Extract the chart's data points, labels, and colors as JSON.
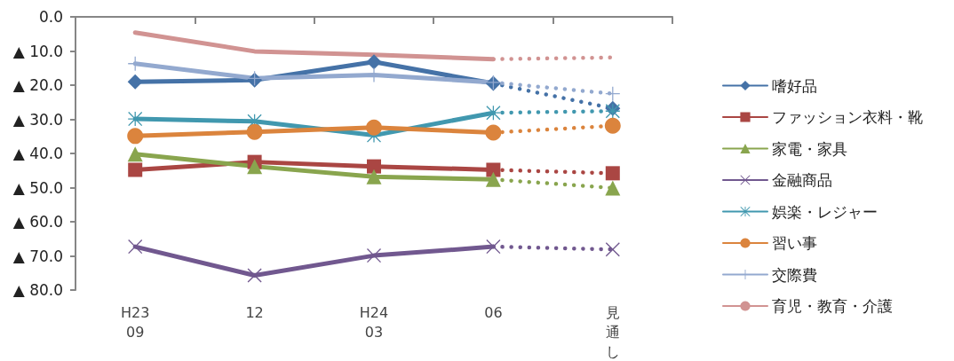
{
  "chart_data": {
    "type": "line",
    "categories": [
      "H23\n09",
      "12",
      "H24\n03",
      "06",
      "見通し"
    ],
    "ylim": [
      -80,
      0
    ],
    "yticks": [
      {
        "value": -80,
        "label": "▲ 80.0"
      },
      {
        "value": -70,
        "label": "▲ 70.0"
      },
      {
        "value": -60,
        "label": "▲ 60.0"
      },
      {
        "value": -50,
        "label": "▲ 50.0"
      },
      {
        "value": -40,
        "label": "▲ 40.0"
      },
      {
        "value": -30,
        "label": "▲ 30.0"
      },
      {
        "value": -20,
        "label": "▲ 20.0"
      },
      {
        "value": -10,
        "label": "▲ 10.0"
      },
      {
        "value": 0,
        "label": "0.0"
      }
    ],
    "grid": false,
    "legend": "right",
    "series": [
      {
        "name": "嗜好品",
        "color": "#4572a7",
        "marker": "diamond",
        "line_style": "solid",
        "values": [
          -19.0,
          -18.5,
          -13.2,
          -19.5,
          null
        ]
      },
      {
        "name": "ファッション衣料・靴",
        "color": "#aa4643",
        "marker": "square",
        "line_style": "solid",
        "values": [
          -44.8,
          -42.5,
          -43.8,
          -44.8,
          null
        ]
      },
      {
        "name": "家電・家具",
        "color": "#89a54e",
        "marker": "triangle",
        "line_style": "solid",
        "values": [
          -40.2,
          -43.8,
          -46.8,
          -47.6,
          null
        ]
      },
      {
        "name": "金融商品",
        "color": "#71588f",
        "marker": "cross",
        "line_style": "solid",
        "values": [
          -67.3,
          -75.7,
          -69.9,
          -67.3,
          null
        ]
      },
      {
        "name": "娯楽・レジャー",
        "color": "#4198af",
        "marker": "star",
        "line_style": "solid",
        "values": [
          -29.9,
          -30.6,
          -34.7,
          -28.1,
          null
        ]
      },
      {
        "name": "習い事",
        "color": "#db843d",
        "marker": "circle",
        "line_style": "solid",
        "values": [
          -34.9,
          -33.7,
          -32.4,
          -33.9,
          null
        ]
      },
      {
        "name": "交際費",
        "color": "#93a9cf",
        "marker": "plus",
        "line_style": "solid",
        "values": [
          -13.7,
          -18.0,
          -17.0,
          -19.2,
          null
        ]
      },
      {
        "name": "育児・教育・介護",
        "color": "#d19392",
        "marker": "none",
        "line_style": "solid",
        "values": [
          -4.6,
          -10.1,
          -11.1,
          -12.4,
          null
        ]
      },
      {
        "color": "#4572a7",
        "marker": "diamond",
        "line_style": "dotted",
        "values": [
          null,
          null,
          null,
          -19.5,
          -26.8
        ]
      },
      {
        "color": "#aa4643",
        "marker": "square",
        "line_style": "dotted",
        "values": [
          null,
          null,
          null,
          -44.8,
          -45.8
        ]
      },
      {
        "color": "#89a54e",
        "marker": "triangle",
        "line_style": "dotted",
        "values": [
          null,
          null,
          null,
          -47.6,
          -50.1
        ]
      },
      {
        "color": "#71588f",
        "marker": "cross",
        "line_style": "dotted",
        "values": [
          null,
          null,
          null,
          -67.3,
          -68.1
        ]
      },
      {
        "color": "#4198af",
        "marker": "star",
        "line_style": "dotted",
        "values": [
          null,
          null,
          null,
          -28.1,
          -27.6
        ]
      },
      {
        "color": "#db843d",
        "marker": "circle",
        "line_style": "dotted",
        "values": [
          null,
          null,
          null,
          -33.9,
          -31.9
        ]
      },
      {
        "color": "#93a9cf",
        "marker": "plus",
        "line_style": "dotted",
        "values": [
          null,
          null,
          null,
          -19.2,
          -22.5
        ]
      },
      {
        "color": "#d19392",
        "marker": "none",
        "line_style": "dotted",
        "values": [
          null,
          null,
          null,
          -12.4,
          -11.9
        ]
      }
    ]
  }
}
